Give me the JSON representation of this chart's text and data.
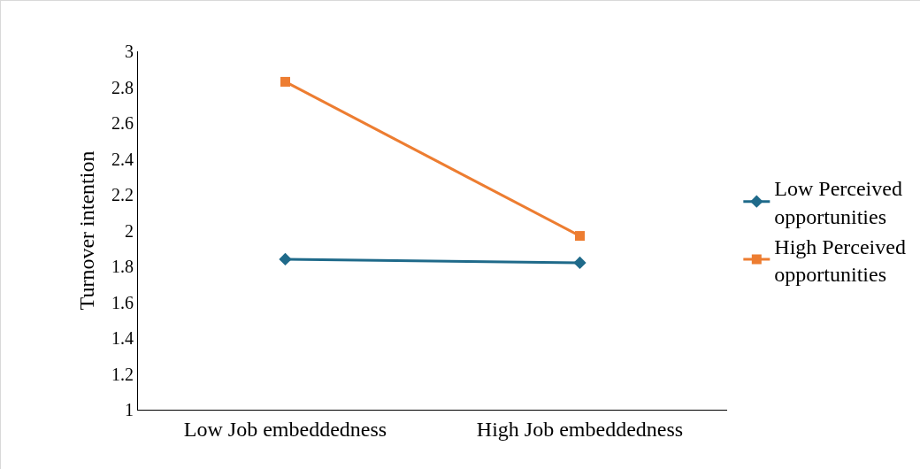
{
  "chart_data": {
    "type": "line",
    "ylabel": "Turnover intention",
    "categories": [
      "Low Job embeddedness",
      "High Job embeddedness"
    ],
    "series": [
      {
        "name": "Low Perceived opportunities",
        "color": "#1f6a8a",
        "marker": "diamond",
        "values": [
          1.84,
          1.82
        ]
      },
      {
        "name": "High Perceived opportunities",
        "color": "#ed7d31",
        "marker": "square",
        "values": [
          2.83,
          1.97
        ]
      }
    ],
    "ylim": [
      1,
      3
    ],
    "yticks": [
      1,
      1.2,
      1.4,
      1.6,
      1.8,
      2,
      2.2,
      2.4,
      2.6,
      2.8,
      3
    ],
    "grid": false,
    "legend": "right"
  }
}
